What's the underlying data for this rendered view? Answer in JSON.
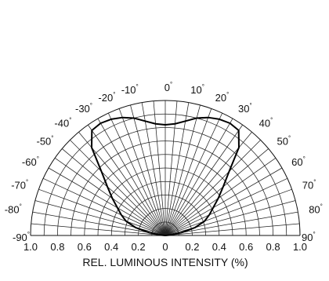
{
  "chart_data": {
    "type": "polar",
    "xlabel": "REL. LUMINOUS INTENSITY (%)",
    "radial_range": [
      0,
      1.0
    ],
    "radial_ticks": [
      "1.0",
      "0.8",
      "0.6",
      "0.4",
      "0.2",
      "0",
      "0.2",
      "0.4",
      "0.6",
      "0.8",
      "1.0"
    ],
    "radial_grid": [
      0.1,
      0.2,
      0.3,
      0.4,
      0.5,
      0.6,
      0.7,
      0.8,
      0.9,
      1.0
    ],
    "angle_range": [
      -90,
      90
    ],
    "angle_grid_step": 5,
    "angle_labels": [
      {
        "angle": -90,
        "text": "-90"
      },
      {
        "angle": -80,
        "text": "-80"
      },
      {
        "angle": -70,
        "text": "-70"
      },
      {
        "angle": -60,
        "text": "-60"
      },
      {
        "angle": -50,
        "text": "-50"
      },
      {
        "angle": -40,
        "text": "-40"
      },
      {
        "angle": -30,
        "text": "-30"
      },
      {
        "angle": -20,
        "text": "-20"
      },
      {
        "angle": -10,
        "text": "-10"
      },
      {
        "angle": 0,
        "text": "0"
      },
      {
        "angle": 10,
        "text": "10"
      },
      {
        "angle": 20,
        "text": "20"
      },
      {
        "angle": 30,
        "text": "30"
      },
      {
        "angle": 40,
        "text": "40"
      },
      {
        "angle": 50,
        "text": "50"
      },
      {
        "angle": 60,
        "text": "60"
      },
      {
        "angle": 70,
        "text": "70"
      },
      {
        "angle": 80,
        "text": "80"
      },
      {
        "angle": 90,
        "text": "90"
      }
    ],
    "degree_symbol": "°",
    "grid": true,
    "series": [
      {
        "angles": [
          -90,
          -85,
          -80,
          -75,
          -70,
          -65,
          -60,
          -55,
          -50,
          -45,
          -40,
          -35,
          -30,
          -25,
          -20,
          -15,
          -10,
          -5,
          0,
          5,
          10,
          15,
          20,
          25,
          30,
          35,
          40,
          45,
          50,
          55,
          60,
          65,
          70,
          75,
          80,
          85,
          90
        ],
        "values": [
          0.0,
          0.03,
          0.12,
          0.23,
          0.31,
          0.36,
          0.41,
          0.48,
          0.56,
          0.67,
          0.85,
          0.95,
          0.96,
          0.95,
          0.93,
          0.9,
          0.86,
          0.83,
          0.82,
          0.83,
          0.86,
          0.9,
          0.93,
          0.95,
          0.96,
          0.95,
          0.85,
          0.67,
          0.56,
          0.48,
          0.41,
          0.36,
          0.31,
          0.23,
          0.12,
          0.03,
          0.0
        ],
        "color": "#000000"
      }
    ]
  }
}
